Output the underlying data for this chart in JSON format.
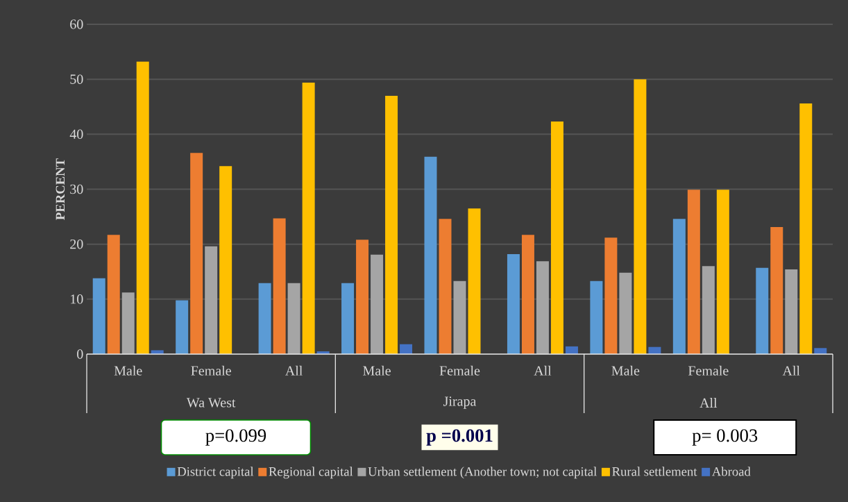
{
  "chart_data": {
    "type": "bar",
    "ylabel": "PERCENT",
    "categories": [
      "Male",
      "Female",
      "All",
      "Male",
      "Female",
      "All",
      "Male",
      "Female",
      "All"
    ],
    "series": [
      {
        "name": "District capital",
        "color": "#5b9bd5",
        "values": [
          13.8,
          9.8,
          12.9,
          12.9,
          35.9,
          18.2,
          13.3,
          24.6,
          15.7
        ]
      },
      {
        "name": "Regional capital",
        "color": "#ed7d31",
        "values": [
          21.7,
          36.6,
          24.7,
          20.8,
          24.6,
          21.7,
          21.2,
          29.9,
          23.1
        ]
      },
      {
        "name": "Urban settlement (Another town; not capital",
        "color": "#a5a5a5",
        "values": [
          11.2,
          19.6,
          12.9,
          18.1,
          13.3,
          16.9,
          14.8,
          16.0,
          15.4
        ]
      },
      {
        "name": "Rural settlement",
        "color": "#ffc000",
        "values": [
          53.2,
          34.2,
          49.4,
          47.0,
          26.5,
          42.3,
          50.0,
          29.9,
          45.6
        ]
      },
      {
        "name": "Abroad",
        "color": "#4472c4",
        "values": [
          0.7,
          0,
          0.5,
          1.8,
          0,
          1.4,
          1.3,
          0,
          1.1
        ]
      }
    ],
    "annotations": [
      "Wa West",
      "Jirapa",
      "All",
      "p=0.099",
      "p =0.001",
      "p= 0.003"
    ],
    "ylim": [
      0,
      60
    ],
    "yticks": [
      0,
      10,
      20,
      30,
      40,
      50,
      60
    ],
    "grid": "y",
    "legend": "bottom"
  }
}
